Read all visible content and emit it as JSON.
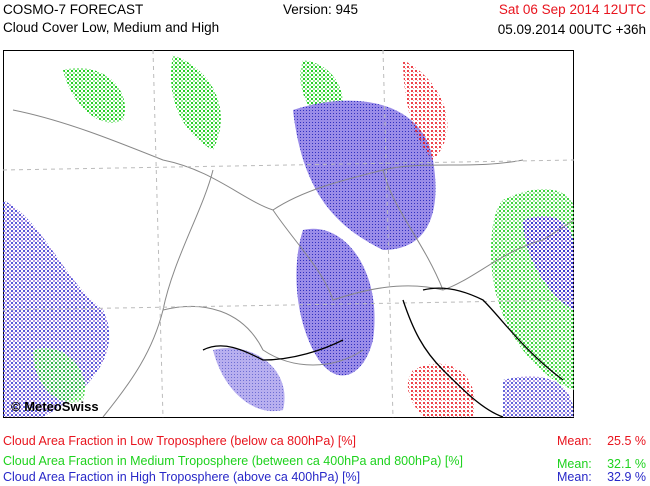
{
  "header": {
    "title": "COSMO-7 FORECAST",
    "subtitle": "Cloud Cover Low, Medium and High",
    "version": "Version: 945",
    "valid_time": "Sat 06 Sep 2014 12UTC",
    "run_time": "05.09.2014 00UTC +36h"
  },
  "map": {
    "credit": "© MeteoSwiss"
  },
  "legend": [
    {
      "label": "Cloud Area Fraction in Low Troposphere (below ca 800hPa) [%]",
      "mean_label": "Mean:",
      "mean": "25.5 %",
      "color": "#e8141e"
    },
    {
      "label": "Cloud Area Fraction in Medium Troposphere (between ca 400hPa and 800hPa) [%]",
      "mean_label": "Mean:",
      "mean": "32.1 %",
      "color": "#1ed21e"
    },
    {
      "label": "Cloud Area Fraction in High Troposphere (above ca 400hPa) [%]",
      "mean_label": "Mean:",
      "mean": "32.9 %",
      "color": "#2828c8"
    }
  ]
}
